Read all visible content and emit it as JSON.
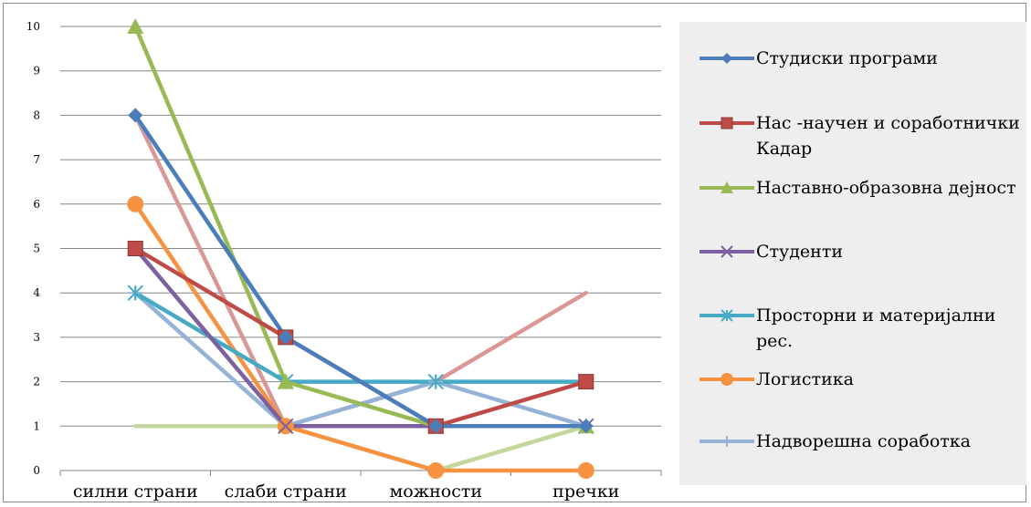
{
  "chart_data": {
    "type": "line",
    "categories": [
      "силни страни",
      "слаби страни",
      "можности",
      "пречки"
    ],
    "ylim": [
      0,
      10
    ],
    "yticks": [
      0,
      1,
      2,
      3,
      4,
      5,
      6,
      7,
      8,
      9,
      10
    ],
    "ytick_labels": [
      "0",
      "1",
      "2",
      "3",
      "4",
      "5",
      "6",
      "7",
      "8",
      "9",
      "10"
    ],
    "grid": "horizontal",
    "legend_position": "right",
    "series": [
      {
        "name": "Студиски програми",
        "values": [
          8,
          3,
          1,
          1
        ],
        "color": "#4a7ebb",
        "marker": "diamond"
      },
      {
        "name": "Нас -научен и соработнички Кадар",
        "values": [
          5,
          3,
          1,
          2
        ],
        "color": "#be4b48",
        "marker": "square"
      },
      {
        "name": "Наставно-образовна дејност",
        "values": [
          10,
          2,
          1,
          1
        ],
        "color": "#98b954",
        "marker": "triangle"
      },
      {
        "name": "Студенти",
        "values": [
          5,
          1,
          1,
          1
        ],
        "color": "#7d60a0",
        "marker": "x"
      },
      {
        "name": "Просторни и материјални рес.",
        "values": [
          4,
          2,
          2,
          2
        ],
        "color": "#46aac5",
        "marker": "star"
      },
      {
        "name": "Логистика",
        "values": [
          6,
          1,
          0,
          0
        ],
        "color": "#f69240",
        "marker": "circle"
      },
      {
        "name": "Надворешна соработка",
        "values": [
          4,
          1,
          2,
          1
        ],
        "color": "#95b3d7",
        "marker": "plus"
      },
      {
        "name": "",
        "values": [
          8,
          1,
          2,
          4
        ],
        "color": "#d99795",
        "marker": "none"
      },
      {
        "name": "",
        "values": [
          1,
          1,
          0,
          1
        ],
        "color": "#c3d69b",
        "marker": "none"
      }
    ]
  }
}
